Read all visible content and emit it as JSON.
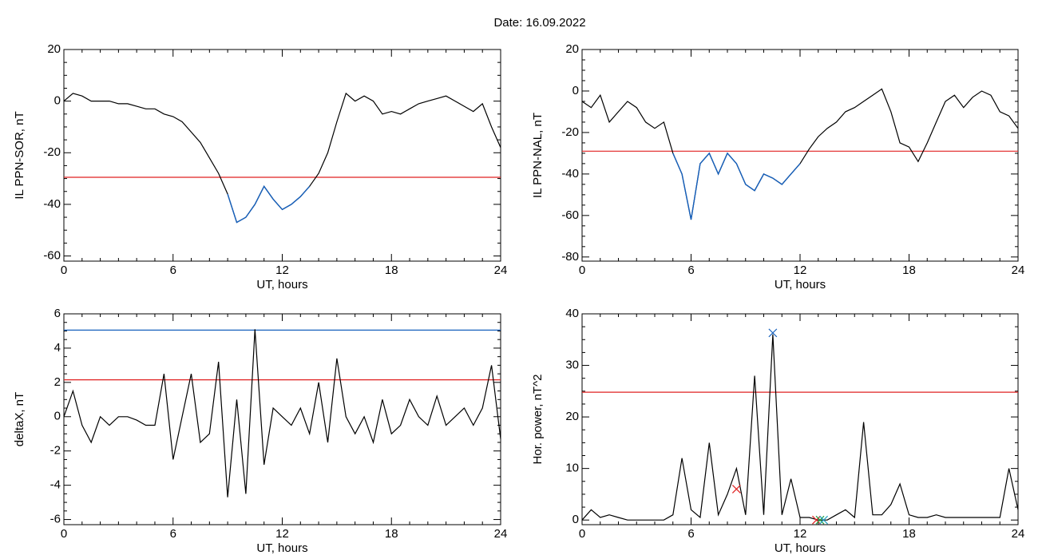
{
  "title": "Date:  16.09.2022",
  "chart_data": [
    {
      "type": "line",
      "ylabel": "IL PPN-SOR, nT",
      "xlabel": "UT, hours",
      "xlim": [
        0,
        24
      ],
      "xticks": [
        0,
        6,
        12,
        18,
        24
      ],
      "ylim": [
        -62,
        20
      ],
      "yticks": [
        -60,
        -40,
        -20,
        0,
        20
      ],
      "x": [
        0,
        0.5,
        1,
        1.5,
        2,
        2.5,
        3,
        3.5,
        4,
        4.5,
        5,
        5.5,
        6,
        6.5,
        7,
        7.5,
        8,
        8.5,
        9,
        9.5,
        10,
        10.5,
        11,
        11.5,
        12,
        12.5,
        13,
        13.5,
        14,
        14.5,
        15,
        15.5,
        16,
        16.5,
        17,
        17.5,
        18,
        18.5,
        19,
        19.5,
        20,
        20.5,
        21,
        21.5,
        22,
        22.5,
        23,
        23.5,
        24
      ],
      "series": [
        {
          "color": "#000000",
          "below_color": "#1560bd",
          "values": [
            0,
            3,
            2,
            0,
            0,
            0,
            -1,
            -1,
            -2,
            -3,
            -3,
            -5,
            -6,
            -8,
            -12,
            -16,
            -22,
            -28,
            -36,
            -47,
            -45,
            -40,
            -33,
            -38,
            -42,
            -40,
            -37,
            -33,
            -28,
            -20,
            -8,
            3,
            0,
            2,
            0,
            -5,
            -4,
            -5,
            -3,
            -1,
            0,
            1,
            2,
            0,
            -2,
            -4,
            -1,
            -10,
            -18
          ]
        }
      ],
      "hlines": [
        {
          "value": -29.5,
          "color": "#e02020"
        }
      ]
    },
    {
      "type": "line",
      "ylabel": "IL PPN-NAL, nT",
      "xlabel": "UT, hours",
      "xlim": [
        0,
        24
      ],
      "xticks": [
        0,
        6,
        12,
        18,
        24
      ],
      "ylim": [
        -82,
        20
      ],
      "yticks": [
        -80,
        -60,
        -40,
        -20,
        0,
        20
      ],
      "x": [
        0,
        0.5,
        1,
        1.5,
        2,
        2.5,
        3,
        3.5,
        4,
        4.5,
        5,
        5.5,
        6,
        6.5,
        7,
        7.5,
        8,
        8.5,
        9,
        9.5,
        10,
        10.5,
        11,
        11.5,
        12,
        12.5,
        13,
        13.5,
        14,
        14.5,
        15,
        15.5,
        16,
        16.5,
        17,
        17.5,
        18,
        18.5,
        19,
        19.5,
        20,
        20.5,
        21,
        21.5,
        22,
        22.5,
        23,
        23.5,
        24
      ],
      "series": [
        {
          "color": "#000000",
          "below_color": "#1560bd",
          "values": [
            -5,
            -8,
            -2,
            -15,
            -10,
            -5,
            -8,
            -15,
            -18,
            -15,
            -30,
            -40,
            -62,
            -35,
            -30,
            -40,
            -30,
            -35,
            -45,
            -48,
            -40,
            -42,
            -45,
            -40,
            -35,
            -28,
            -22,
            -18,
            -15,
            -10,
            -8,
            -5,
            -2,
            1,
            -10,
            -25,
            -27,
            -34,
            -25,
            -15,
            -5,
            -2,
            -8,
            -3,
            0,
            -2,
            -10,
            -12,
            -18
          ]
        }
      ],
      "hlines": [
        {
          "value": -29,
          "color": "#e02020"
        }
      ]
    },
    {
      "type": "line",
      "ylabel": "deltaX, nT",
      "xlabel": "UT, hours",
      "xlim": [
        0,
        24
      ],
      "xticks": [
        0,
        6,
        12,
        18,
        24
      ],
      "ylim": [
        -6.3,
        6
      ],
      "yticks": [
        -6,
        -4,
        -2,
        0,
        2,
        4,
        6
      ],
      "x": [
        0,
        0.5,
        1,
        1.5,
        2,
        2.5,
        3,
        3.5,
        4,
        4.5,
        5,
        5.5,
        6,
        6.5,
        7,
        7.5,
        8,
        8.5,
        9,
        9.5,
        10,
        10.5,
        11,
        11.5,
        12,
        12.5,
        13,
        13.5,
        14,
        14.5,
        15,
        15.5,
        16,
        16.5,
        17,
        17.5,
        18,
        18.5,
        19,
        19.5,
        20,
        20.5,
        21,
        21.5,
        22,
        22.5,
        23,
        23.5,
        24
      ],
      "series": [
        {
          "color": "#000000",
          "values": [
            0,
            1.5,
            -0.5,
            -1.5,
            0,
            -0.5,
            0,
            0,
            -0.2,
            -0.5,
            -0.5,
            2.5,
            -2.5,
            0,
            2.5,
            -1.5,
            -1,
            3.2,
            -4.7,
            1,
            -4.5,
            5.1,
            -2.8,
            0.5,
            0,
            -0.5,
            0.5,
            -1,
            2,
            -1.5,
            3.4,
            0,
            -1,
            0,
            -1.5,
            1,
            -1,
            -0.5,
            1,
            0,
            -0.5,
            1.2,
            -0.5,
            0,
            0.5,
            -0.5,
            0.5,
            3,
            -1.3
          ]
        }
      ],
      "hlines": [
        {
          "value": 5.05,
          "color": "#1560bd"
        },
        {
          "value": 2.15,
          "color": "#e02020"
        }
      ]
    },
    {
      "type": "line",
      "ylabel": "Hor. power, nT^2",
      "xlabel": "UT, hours",
      "xlim": [
        0,
        24
      ],
      "xticks": [
        0,
        6,
        12,
        18,
        24
      ],
      "ylim": [
        -0.9,
        40
      ],
      "yticks": [
        0,
        10,
        20,
        30,
        40
      ],
      "x": [
        0,
        0.5,
        1,
        1.5,
        2,
        2.5,
        3,
        3.5,
        4,
        4.5,
        5,
        5.5,
        6,
        6.5,
        7,
        7.5,
        8,
        8.5,
        9,
        9.5,
        10,
        10.5,
        11,
        11.5,
        12,
        12.5,
        13,
        13.5,
        14,
        14.5,
        15,
        15.5,
        16,
        16.5,
        17,
        17.5,
        18,
        18.5,
        19,
        19.5,
        20,
        20.5,
        21,
        21.5,
        22,
        22.5,
        23,
        23.5,
        24
      ],
      "series": [
        {
          "color": "#000000",
          "values": [
            0,
            2,
            0.5,
            1,
            0.5,
            0,
            0,
            0,
            0,
            0,
            1,
            12,
            2,
            0.5,
            15,
            1,
            5,
            10,
            1,
            28,
            1,
            36,
            1,
            8,
            0.5,
            0.5,
            0,
            0,
            1,
            2,
            0.5,
            19,
            1,
            1,
            3,
            7,
            1,
            0.5,
            0.5,
            1,
            0.5,
            0.5,
            0.5,
            0.5,
            0.5,
            0.5,
            0.5,
            10,
            2
          ]
        }
      ],
      "hlines": [
        {
          "value": 24.8,
          "color": "#e02020"
        }
      ],
      "markers": [
        {
          "x": 8.5,
          "y": 6,
          "color": "#e02020"
        },
        {
          "x": 10.5,
          "y": 36.3,
          "color": "#1560bd"
        },
        {
          "x": 12.9,
          "y": 0,
          "color": "#e02020"
        },
        {
          "x": 13.1,
          "y": 0,
          "color": "#20a040"
        },
        {
          "x": 13.3,
          "y": 0,
          "color": "#20a0c0"
        }
      ]
    }
  ]
}
